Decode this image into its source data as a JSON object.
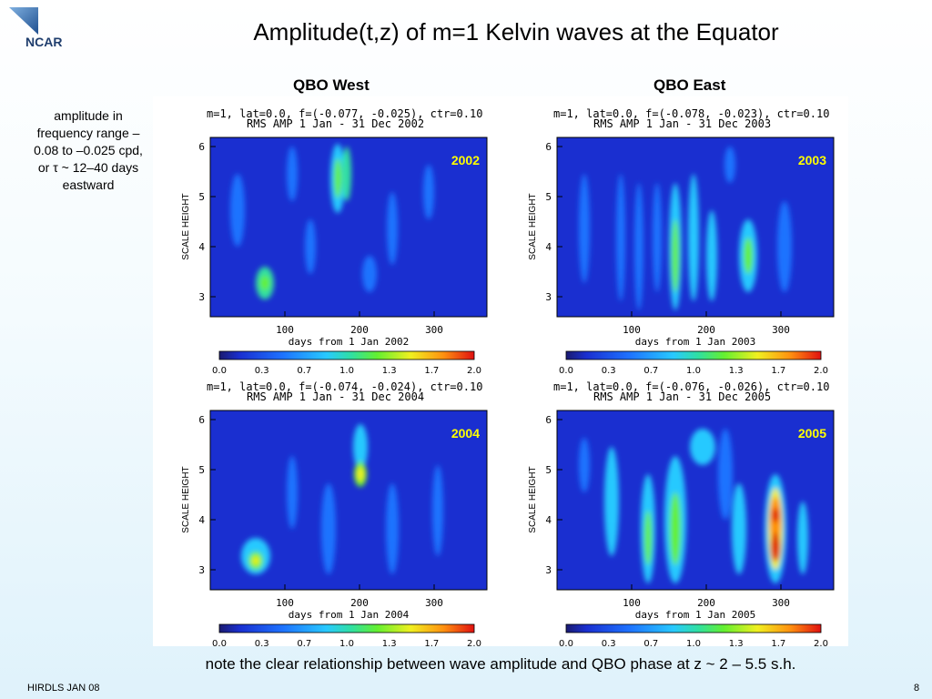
{
  "logo": {
    "text": "NCAR"
  },
  "title": "Amplitude(t,z) of m=1 Kelvin waves at the Equator",
  "columns": {
    "left": "QBO West",
    "right": "QBO East"
  },
  "side_note": {
    "line1": "amplitude in",
    "line2": "frequency range –",
    "line3": "0.08 to –0.025 cpd,",
    "line4": "or τ ~ 12–40 days",
    "line5": "eastward"
  },
  "panels": [
    {
      "header1": "m=1, lat=0.0, f=(-0.077, -0.025), ctr=0.10",
      "header2": "RMS AMP  1 Jan - 31 Dec 2002",
      "year": "2002",
      "xlabel": "days from  1 Jan 2002"
    },
    {
      "header1": "m=1, lat=0.0, f=(-0.078, -0.023), ctr=0.10",
      "header2": "RMS AMP  1 Jan - 31 Dec 2003",
      "year": "2003",
      "xlabel": "days from  1 Jan 2003"
    },
    {
      "header1": "m=1, lat=0.0, f=(-0.074, -0.024), ctr=0.10",
      "header2": "RMS AMP  1 Jan - 31 Dec 2004",
      "year": "2004",
      "xlabel": "days from  1 Jan 2004"
    },
    {
      "header1": "m=1, lat=0.0, f=(-0.076, -0.026), ctr=0.10",
      "header2": "RMS AMP  1 Jan - 31 Dec 2005",
      "year": "2005",
      "xlabel": "days from  1 Jan 2005"
    }
  ],
  "axes": {
    "ylabel": "SCALE HEIGHT",
    "yticks": [
      "3",
      "4",
      "5",
      "6"
    ],
    "xticks": [
      "100",
      "200",
      "300"
    ]
  },
  "colorbar": {
    "ticks": [
      "0.0",
      "0.3",
      "0.7",
      "1.0",
      "1.3",
      "1.7",
      "2.0"
    ]
  },
  "footer": {
    "note": "note the clear relationship between wave amplitude and QBO phase at z ~ 2 – 5.5 s.h.",
    "left": "HIRDLS JAN 08",
    "page": "8"
  },
  "colors": {
    "year_label": "#ffff00",
    "plot_background": "#1a2fd0"
  }
}
